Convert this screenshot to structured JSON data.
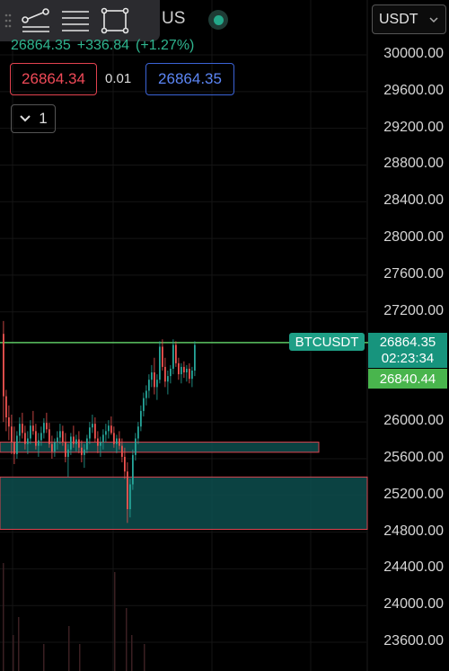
{
  "header": {
    "title_visible": "US",
    "change_line": {
      "last": "26864.35",
      "change": "+336.84",
      "percent": "(+1.27%)"
    }
  },
  "order_panel": {
    "bid": "26864.34",
    "spread": "0.01",
    "ask": "26864.35",
    "quantity": "1"
  },
  "currency_select": {
    "value": "USDT"
  },
  "toolbar": {
    "tools": [
      {
        "name": "trend-line-tool"
      },
      {
        "name": "horizontal-lines-tool"
      },
      {
        "name": "rectangle-tool"
      }
    ]
  },
  "price_axis": {
    "labels": [
      "30000.00",
      "29600.00",
      "29200.00",
      "28800.00",
      "28400.00",
      "28000.00",
      "27600.00",
      "27200.00",
      "26000.00",
      "25600.00",
      "25200.00",
      "24800.00",
      "24400.00",
      "24000.00",
      "23600.00"
    ]
  },
  "symbol_tag": "BTCUSDT",
  "last_price_tag": {
    "price": "26864.35",
    "countdown": "02:23:34"
  },
  "second_price_tag": "26840.44",
  "colors": {
    "up": "#26a69a",
    "down": "#ef5350",
    "line": "#5cc763",
    "zone": "#0d4d4d",
    "zone_border": "#d9434f"
  },
  "chart_data": {
    "type": "candlestick",
    "price_line": 26864.35,
    "zones": [
      {
        "from": 25670,
        "to": 25780
      },
      {
        "from": 24830,
        "to": 25400
      }
    ],
    "candles": [
      [
        26960,
        27100,
        26000,
        26280
      ],
      [
        26280,
        26350,
        25900,
        26050
      ],
      [
        26050,
        26180,
        25800,
        25950
      ],
      [
        25950,
        26080,
        25650,
        25780
      ],
      [
        25780,
        25950,
        25540,
        25650
      ],
      [
        25650,
        25900,
        25600,
        25850
      ],
      [
        25850,
        26050,
        25780,
        25980
      ],
      [
        25980,
        26100,
        25820,
        25880
      ],
      [
        25880,
        25960,
        25700,
        25760
      ],
      [
        25760,
        25900,
        25650,
        25820
      ],
      [
        25820,
        26020,
        25760,
        25960
      ],
      [
        25960,
        26120,
        25860,
        25900
      ],
      [
        25900,
        25980,
        25700,
        25740
      ],
      [
        25740,
        25880,
        25620,
        25800
      ],
      [
        25800,
        25950,
        25740,
        25880
      ],
      [
        25880,
        26040,
        25820,
        25990
      ],
      [
        25990,
        26100,
        25880,
        25920
      ],
      [
        25920,
        25990,
        25720,
        25760
      ],
      [
        25760,
        25850,
        25600,
        25680
      ],
      [
        25680,
        25820,
        25620,
        25780
      ],
      [
        25780,
        25900,
        25700,
        25830
      ],
      [
        25830,
        25980,
        25760,
        25900
      ],
      [
        25900,
        25960,
        25740,
        25780
      ],
      [
        25780,
        25880,
        25560,
        25620
      ],
      [
        25620,
        25760,
        25400,
        25700
      ],
      [
        25700,
        25880,
        25640,
        25840
      ],
      [
        25840,
        25960,
        25720,
        25760
      ],
      [
        25760,
        25860,
        25680,
        25810
      ],
      [
        25810,
        25900,
        25660,
        25720
      ],
      [
        25720,
        25800,
        25560,
        25640
      ],
      [
        25640,
        25760,
        25500,
        25700
      ],
      [
        25700,
        25860,
        25660,
        25820
      ],
      [
        25820,
        26000,
        25760,
        25940
      ],
      [
        25940,
        26080,
        25880,
        25980
      ],
      [
        25980,
        26050,
        25780,
        25820
      ],
      [
        25820,
        25900,
        25660,
        25740
      ],
      [
        25740,
        25840,
        25620,
        25780
      ],
      [
        25780,
        25920,
        25700,
        25860
      ],
      [
        25860,
        25980,
        25780,
        25900
      ],
      [
        25900,
        26020,
        25820,
        25960
      ],
      [
        25960,
        26060,
        25860,
        25880
      ],
      [
        25880,
        25950,
        25720,
        25760
      ],
      [
        25760,
        25860,
        25660,
        25820
      ],
      [
        25820,
        25900,
        25700,
        25740
      ],
      [
        25740,
        25820,
        25560,
        25620
      ],
      [
        25620,
        25720,
        25380,
        25460
      ],
      [
        25460,
        25560,
        24900,
        25050
      ],
      [
        25050,
        25380,
        24960,
        25320
      ],
      [
        25320,
        25700,
        25260,
        25640
      ],
      [
        25640,
        25880,
        25580,
        25820
      ],
      [
        25820,
        26000,
        25760,
        25950
      ],
      [
        25950,
        26180,
        25900,
        26120
      ],
      [
        26120,
        26320,
        26060,
        26260
      ],
      [
        26260,
        26400,
        26180,
        26340
      ],
      [
        26340,
        26520,
        26260,
        26460
      ],
      [
        26460,
        26620,
        26380,
        26540
      ],
      [
        26540,
        26700,
        26300,
        26380
      ],
      [
        26380,
        26520,
        26240,
        26460
      ],
      [
        26460,
        26880,
        26420,
        26820
      ],
      [
        26820,
        26900,
        26560,
        26600
      ],
      [
        26600,
        26700,
        26380,
        26440
      ],
      [
        26440,
        26560,
        26300,
        26500
      ],
      [
        26500,
        26620,
        26420,
        26580
      ],
      [
        26580,
        26900,
        26520,
        26840
      ],
      [
        26840,
        26880,
        26600,
        26640
      ],
      [
        26640,
        26700,
        26460,
        26520
      ],
      [
        26520,
        26640,
        26420,
        26600
      ],
      [
        26600,
        26660,
        26480,
        26540
      ],
      [
        26540,
        26620,
        26440,
        26580
      ],
      [
        26580,
        26640,
        26420,
        26470
      ],
      [
        26470,
        26600,
        26380,
        26560
      ],
      [
        26560,
        26880,
        26500,
        26840
      ]
    ]
  }
}
